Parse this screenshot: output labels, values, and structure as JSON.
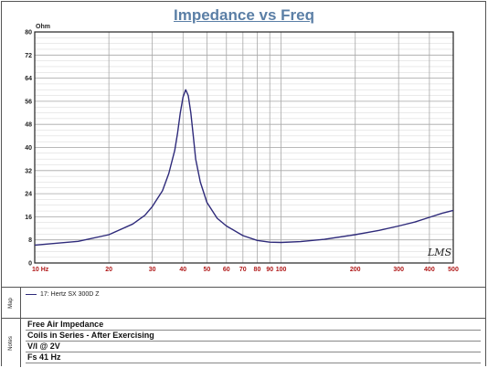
{
  "chart_data": {
    "type": "line",
    "title": "Impedance vs Freq",
    "ylabel": "Ohm",
    "xlabel": "",
    "xscale": "log",
    "xlim": [
      10,
      500
    ],
    "ylim": [
      0,
      80
    ],
    "grid": true,
    "x_ticks": [
      "10 Hz",
      "20",
      "30",
      "40",
      "50",
      "60",
      "70",
      "80",
      "90",
      "100",
      "200",
      "300",
      "400",
      "500"
    ],
    "x_tick_values": [
      10,
      20,
      30,
      40,
      50,
      60,
      70,
      80,
      90,
      100,
      200,
      300,
      400,
      500
    ],
    "y_ticks": [
      "0",
      "8",
      "16",
      "24",
      "32",
      "40",
      "48",
      "56",
      "64",
      "72",
      "80"
    ],
    "y_tick_values": [
      0,
      8,
      16,
      24,
      32,
      40,
      48,
      56,
      64,
      72,
      80
    ],
    "series": [
      {
        "name": "17: Hertz SX 300D Z",
        "color": "#2e2a7a",
        "x": [
          10,
          15,
          20,
          25,
          28,
          30,
          33,
          35,
          37,
          38,
          39,
          40,
          41,
          42,
          43,
          44,
          45,
          47,
          50,
          55,
          60,
          70,
          80,
          90,
          100,
          120,
          150,
          200,
          250,
          300,
          350,
          400,
          450,
          500
        ],
        "y": [
          6.2,
          7.5,
          9.8,
          13.5,
          16.5,
          19.5,
          25,
          31,
          39,
          45,
          52,
          57.5,
          60,
          58,
          52,
          44,
          36,
          28,
          21,
          15.5,
          12.8,
          9.5,
          7.8,
          7.2,
          7.1,
          7.4,
          8.2,
          9.8,
          11.3,
          12.8,
          14.2,
          15.8,
          17.2,
          18.2
        ]
      }
    ]
  },
  "signature": "LMS",
  "map_panel": {
    "label": "Map",
    "legend_entry": "17: Hertz SX 300D Z"
  },
  "notes_panel": {
    "label": "Notes",
    "lines": [
      "Free Air Impedance",
      "Coils in Series - After Exercising",
      "V/I @ 2V",
      "Fs 41 Hz"
    ]
  }
}
